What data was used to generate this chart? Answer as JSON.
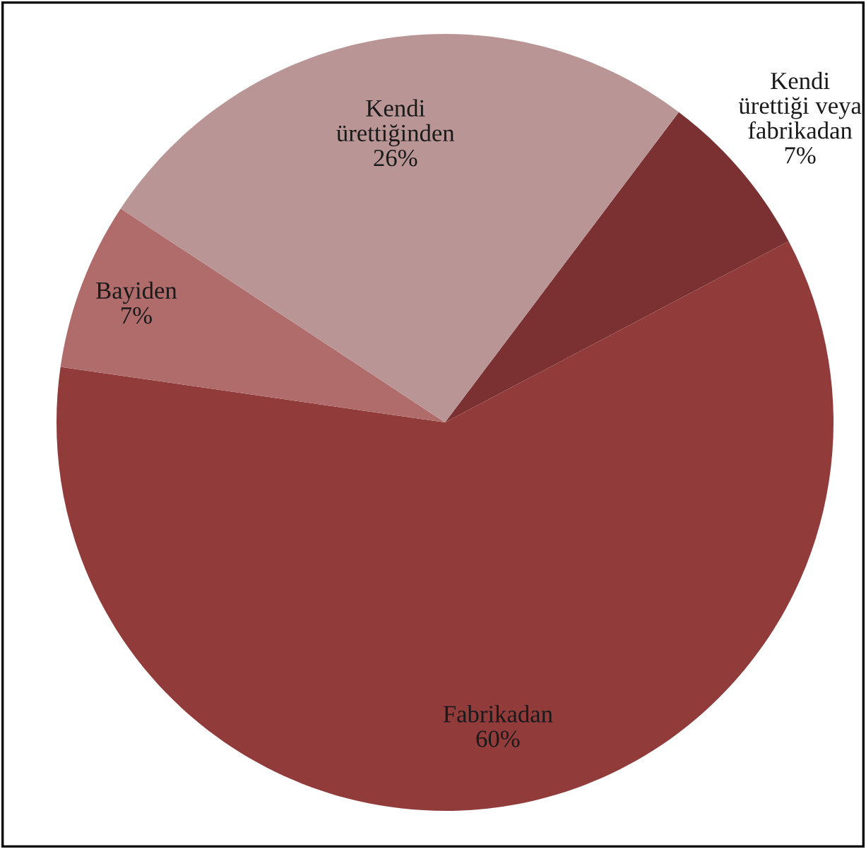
{
  "chart_data": {
    "type": "pie",
    "categories": [
      "Kendi\nürettiği veya\nfabrikadan",
      "Fabrikadan",
      "Bayiden",
      "Kendi\nürettiğinden"
    ],
    "values": [
      7,
      60,
      7,
      26
    ],
    "value_labels": [
      "7%",
      "60%",
      "7%",
      "26%"
    ],
    "colors": [
      "#7b3131",
      "#913b3b",
      "#b06b6b",
      "#b99595"
    ],
    "legend": false
  }
}
